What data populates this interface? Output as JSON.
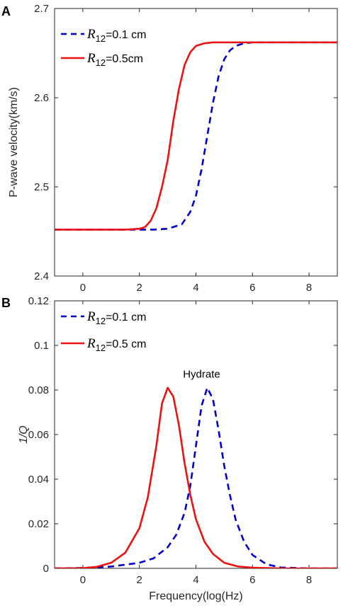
{
  "chart_data": [
    {
      "type": "line",
      "panel_label": "A",
      "xlabel": "",
      "ylabel": "P-wave velocity(km/s)",
      "xlim": [
        -1,
        9
      ],
      "ylim": [
        2.4,
        2.7
      ],
      "xticks": [
        0,
        2,
        4,
        6,
        8
      ],
      "yticks": [
        2.4,
        2.5,
        2.6,
        2.7
      ],
      "xtick_labels": [
        "0",
        "2",
        "4",
        "6",
        "8"
      ],
      "ytick_labels": [
        "2.4",
        "2.5",
        "2.6",
        "2.7"
      ],
      "grid": false,
      "legend_position": "top-left",
      "series": [
        {
          "name_symbol": "R",
          "name_subscript": "12",
          "name_suffix": "=0.1 cm",
          "color": "#0000cc",
          "style": "dashed",
          "x": [
            -1,
            0,
            1,
            2,
            2.5,
            3.0,
            3.5,
            3.8,
            4.0,
            4.2,
            4.4,
            4.6,
            4.8,
            5.0,
            5.2,
            5.4,
            5.7,
            6.0,
            7.0,
            8.0,
            9.0
          ],
          "y": [
            2.452,
            2.452,
            2.452,
            2.452,
            2.452,
            2.453,
            2.458,
            2.472,
            2.49,
            2.52,
            2.557,
            2.594,
            2.624,
            2.643,
            2.653,
            2.658,
            2.661,
            2.662,
            2.662,
            2.662,
            2.662
          ]
        },
        {
          "name_symbol": "R",
          "name_subscript": "12",
          "name_suffix": "=0.5cm",
          "color": "#ee1111",
          "style": "solid",
          "x": [
            -1,
            0,
            1,
            1.5,
            2.0,
            2.2,
            2.4,
            2.6,
            2.8,
            3.0,
            3.2,
            3.4,
            3.6,
            3.8,
            4.0,
            4.3,
            4.6,
            5.0,
            6.0,
            7.0,
            8.0,
            9.0
          ],
          "y": [
            2.452,
            2.452,
            2.452,
            2.452,
            2.453,
            2.455,
            2.462,
            2.476,
            2.5,
            2.53,
            2.574,
            2.61,
            2.637,
            2.651,
            2.658,
            2.661,
            2.662,
            2.662,
            2.662,
            2.662,
            2.662,
            2.662
          ]
        }
      ]
    },
    {
      "type": "line",
      "panel_label": "B",
      "xlabel": "Frequency(log(Hz)",
      "ylabel": "1/Q",
      "xlim": [
        -1,
        9
      ],
      "ylim": [
        0,
        0.12
      ],
      "xticks": [
        0,
        2,
        4,
        6,
        8
      ],
      "yticks": [
        0,
        0.02,
        0.04,
        0.06,
        0.08,
        0.1,
        0.12
      ],
      "xtick_labels": [
        "0",
        "2",
        "4",
        "6",
        "8"
      ],
      "ytick_labels": [
        "0",
        "0.02",
        "0.04",
        "0.06",
        "0.08",
        "0.1",
        "0.12"
      ],
      "grid": false,
      "legend_position": "top-left",
      "annotations": [
        {
          "text": "Hydrate",
          "x": 4.2,
          "y": 0.0855
        }
      ],
      "series": [
        {
          "name_symbol": "R",
          "name_subscript": "12",
          "name_suffix": "=0.1 cm",
          "color": "#0000cc",
          "style": "dashed",
          "x": [
            -1,
            0,
            1,
            2,
            2.5,
            3.0,
            3.3,
            3.6,
            3.8,
            4.0,
            4.2,
            4.4,
            4.6,
            4.8,
            5.0,
            5.2,
            5.4,
            5.7,
            6.0,
            6.5,
            7.0,
            8.0,
            9.0
          ],
          "y": [
            0,
            0.0002,
            0.0008,
            0.0025,
            0.0045,
            0.0095,
            0.015,
            0.025,
            0.037,
            0.055,
            0.073,
            0.081,
            0.076,
            0.062,
            0.046,
            0.033,
            0.022,
            0.012,
            0.006,
            0.0018,
            0.0004,
            0,
            0
          ]
        },
        {
          "name_symbol": "R",
          "name_subscript": "12",
          "name_suffix": "=0.5 cm",
          "color": "#ee1111",
          "style": "solid",
          "x": [
            -1,
            0,
            0.5,
            1.0,
            1.5,
            2.0,
            2.3,
            2.6,
            2.8,
            3.0,
            3.2,
            3.4,
            3.6,
            3.8,
            4.0,
            4.3,
            4.6,
            5.0,
            5.5,
            6.0,
            7.0,
            8.0,
            9.0
          ],
          "y": [
            0,
            0.0001,
            0.0007,
            0.0025,
            0.007,
            0.018,
            0.032,
            0.055,
            0.074,
            0.081,
            0.077,
            0.064,
            0.047,
            0.033,
            0.022,
            0.012,
            0.0065,
            0.0025,
            0.0008,
            0.0003,
            0,
            0,
            0
          ]
        }
      ]
    }
  ]
}
